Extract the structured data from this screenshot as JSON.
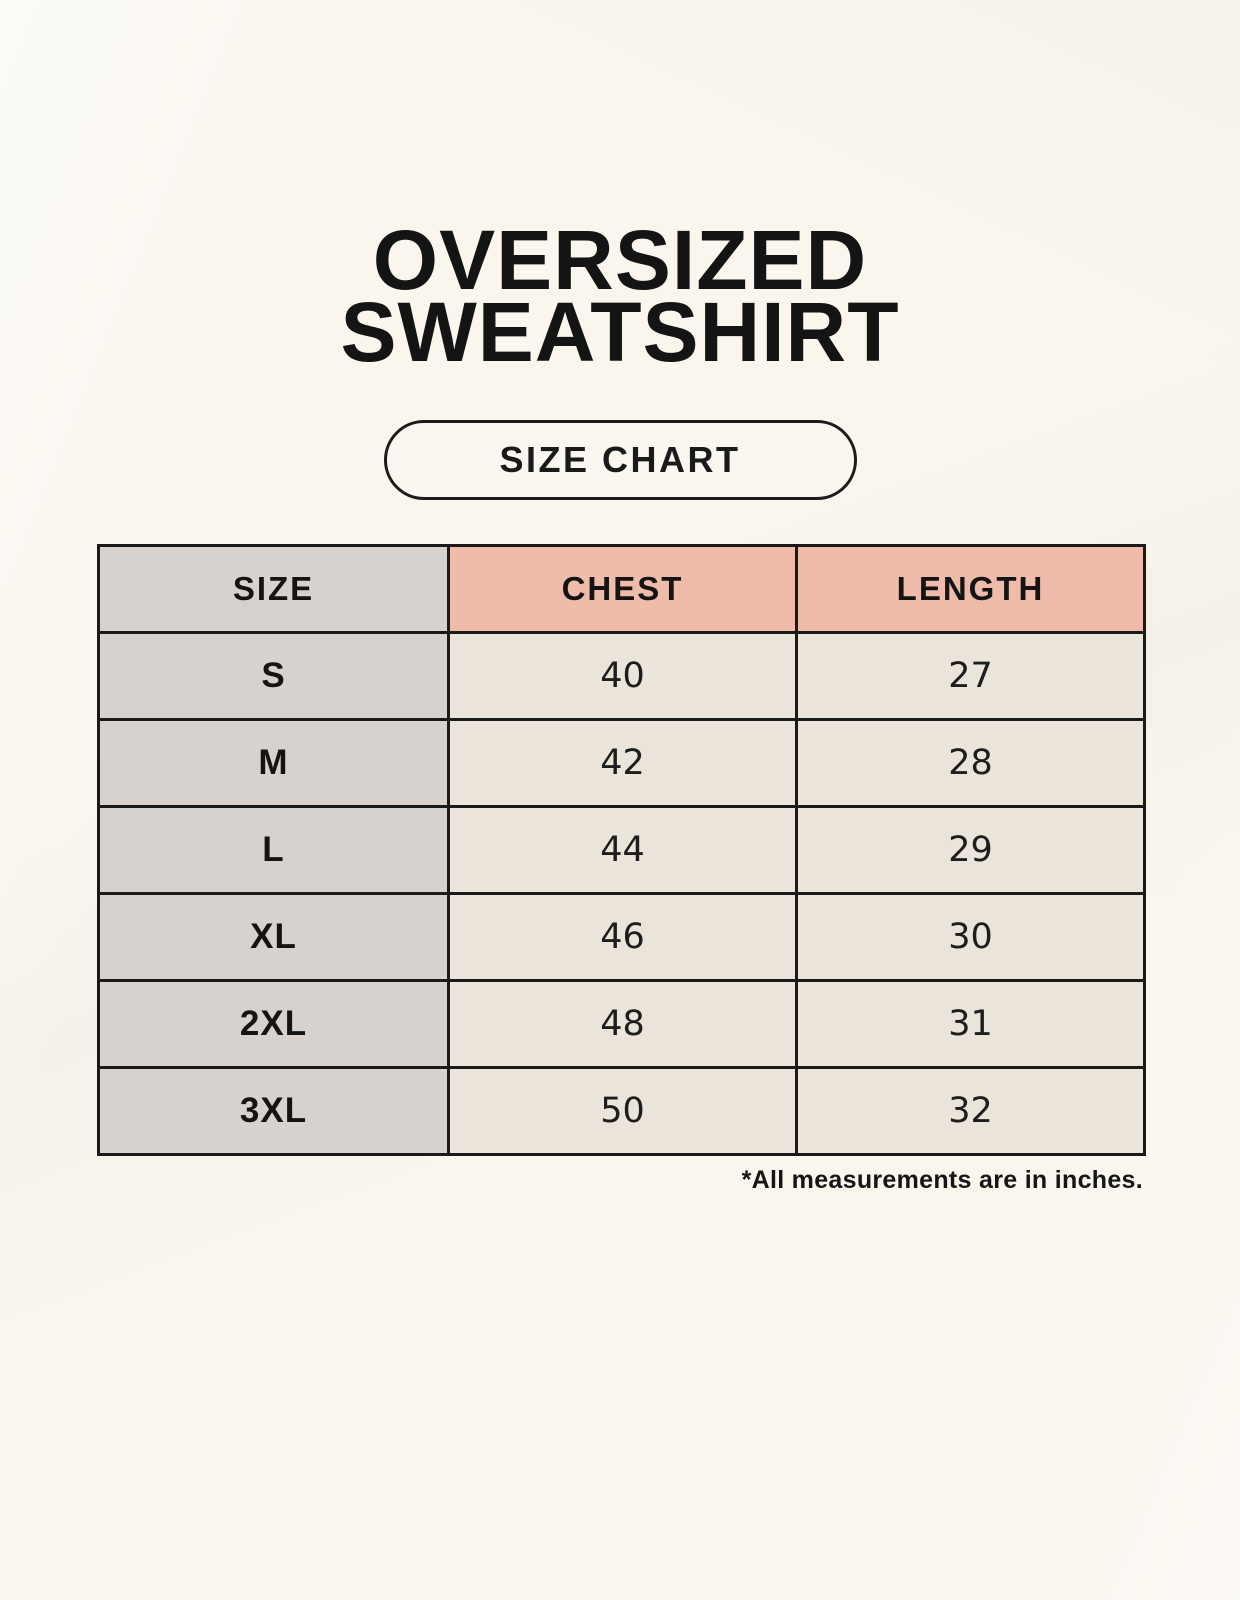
{
  "header": {
    "title_line1": "OVERSIZED",
    "title_line2": "SWEATSHIRT",
    "badge_label": "SIZE CHART"
  },
  "table": {
    "columns": [
      "SIZE",
      "CHEST",
      "LENGTH"
    ],
    "rows": [
      {
        "size": "S",
        "chest": "40",
        "length": "27"
      },
      {
        "size": "M",
        "chest": "42",
        "length": "28"
      },
      {
        "size": "L",
        "chest": "44",
        "length": "29"
      },
      {
        "size": "XL",
        "chest": "46",
        "length": "30"
      },
      {
        "size": "2XL",
        "chest": "48",
        "length": "31"
      },
      {
        "size": "3XL",
        "chest": "50",
        "length": "32"
      }
    ]
  },
  "footnote": "*All measurements are in inches.",
  "colors": {
    "background": "#faf6ee",
    "size_column_bg": "#d8d2cf",
    "header_accent_bg": "#efbbaa",
    "value_cell_bg": "#eae4da",
    "border": "#1a1a1a",
    "text": "#141414"
  },
  "chart_data": {
    "type": "table",
    "title": "OVERSIZED SWEATSHIRT - SIZE CHART",
    "columns": [
      "SIZE",
      "CHEST",
      "LENGTH"
    ],
    "rows": [
      [
        "S",
        40,
        27
      ],
      [
        "M",
        42,
        28
      ],
      [
        "L",
        44,
        29
      ],
      [
        "XL",
        46,
        30
      ],
      [
        "2XL",
        48,
        31
      ],
      [
        "3XL",
        50,
        32
      ]
    ],
    "units": "inches"
  }
}
